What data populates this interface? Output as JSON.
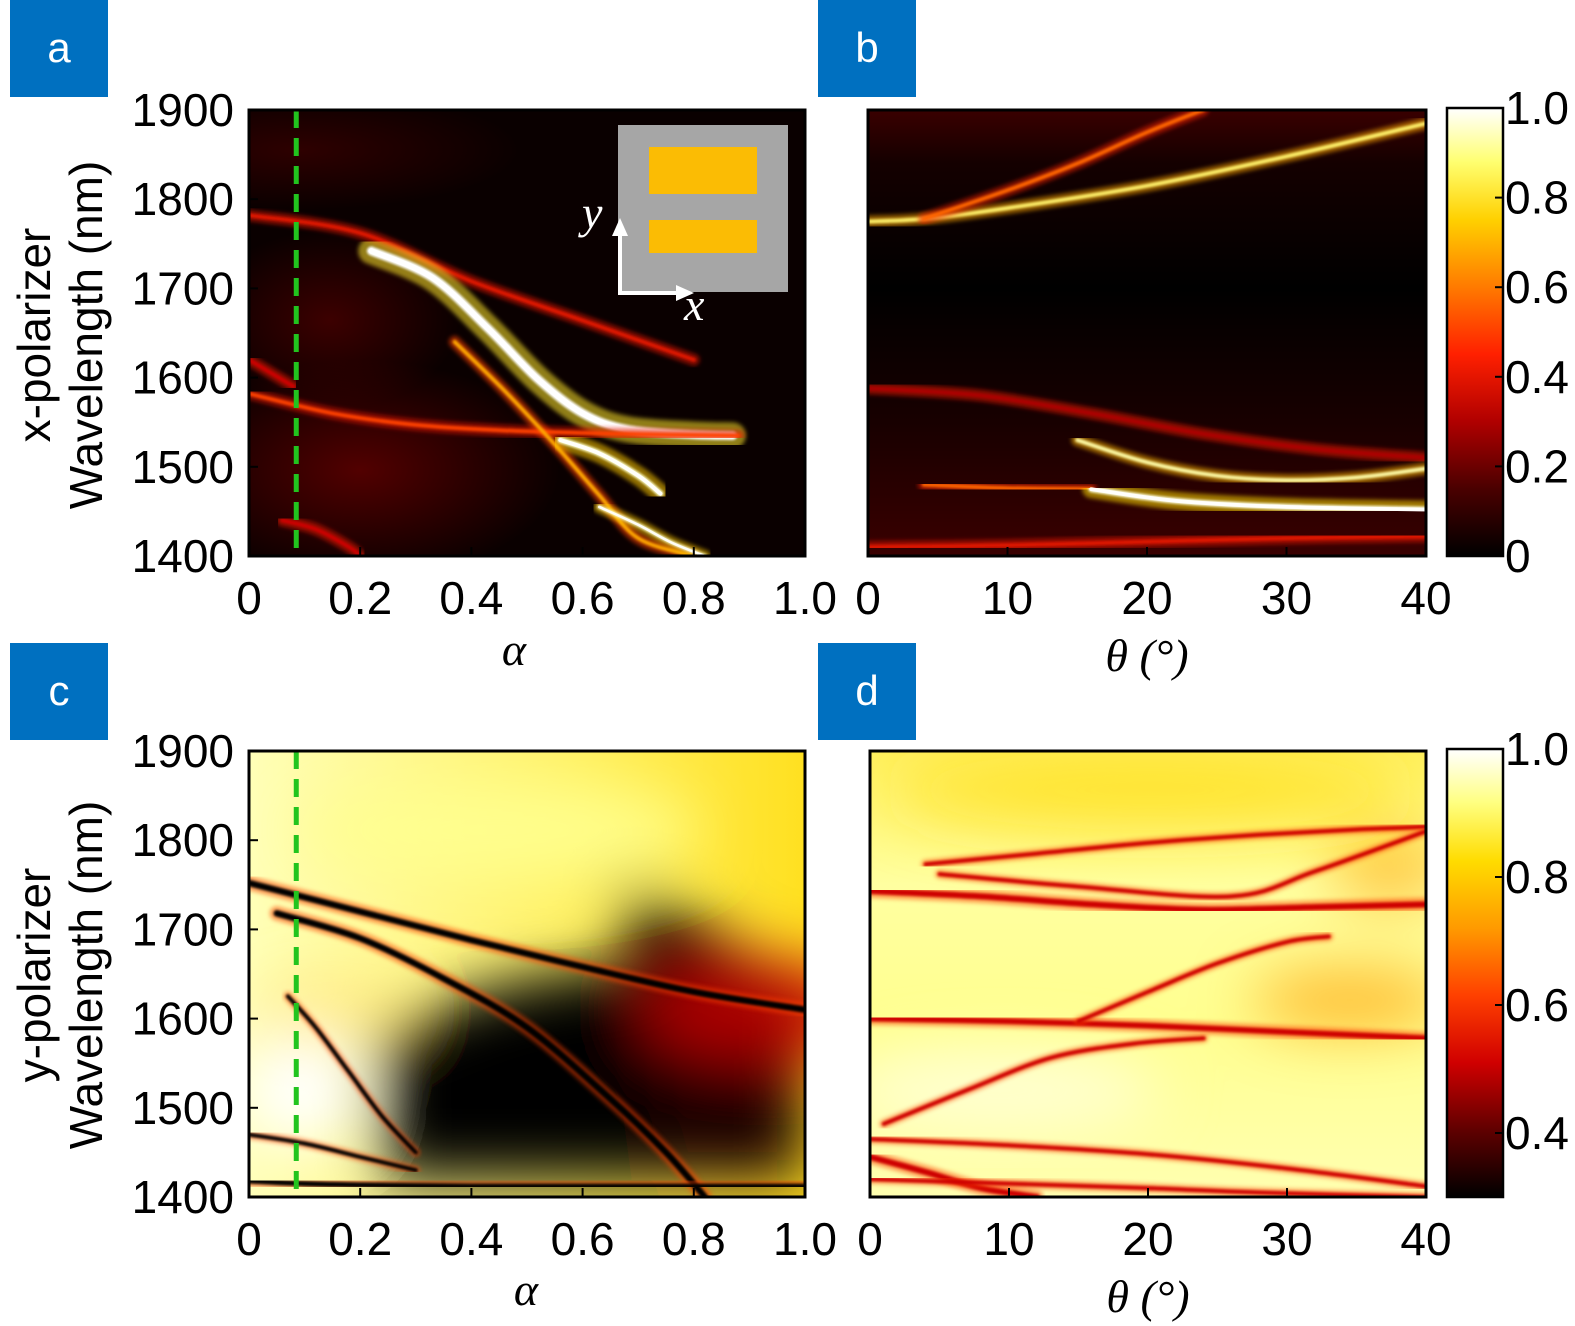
{
  "colors": {
    "badge": "#0070c0",
    "badge_text": "#ffffff",
    "dashed_line": "#22c41e",
    "inset_bg": "#a6a6a6",
    "inset_bar": "#fbbc04",
    "colormap": [
      "#000000",
      "#5c0000",
      "#c80000",
      "#ff3300",
      "#ff9900",
      "#ffdd00",
      "#ffffb0",
      "#ffffff"
    ]
  },
  "inset": {
    "x_label": "x",
    "y_label": "y"
  },
  "chart_data": [
    {
      "panel": "a",
      "type": "heatmap",
      "ylabel_line1": "x-polarizer",
      "ylabel_line2": "Wavelength (nm)",
      "xlabel": "α",
      "xlim": [
        0,
        1.0
      ],
      "ylim": [
        1400,
        1900
      ],
      "x_ticks": [
        "0",
        "0.2",
        "0.4",
        "0.6",
        "0.8",
        "1.0"
      ],
      "y_ticks": [
        "1900",
        "1800",
        "1700",
        "1600",
        "1500",
        "1400"
      ],
      "dashed_line_x": 0.085,
      "bands": [
        {
          "x": [
            0,
            0.2,
            0.4,
            0.6,
            0.8
          ],
          "y": [
            1782,
            1762,
            1708,
            1664,
            1620
          ],
          "intensity": 0.35
        },
        {
          "x": [
            0.22,
            0.33,
            0.43,
            0.52,
            0.6,
            0.68,
            0.8,
            0.87
          ],
          "y": [
            1742,
            1712,
            1655,
            1598,
            1560,
            1542,
            1536,
            1535
          ],
          "intensity": 1.0,
          "width": 2.2
        },
        {
          "x": [
            0,
            0.15,
            0.3,
            0.45,
            0.6,
            0.75,
            0.88
          ],
          "y": [
            1582,
            1560,
            1547,
            1541,
            1538,
            1536,
            1535
          ],
          "intensity": 0.45
        },
        {
          "x": [
            0.37,
            0.46,
            0.55,
            0.63,
            0.7,
            0.8
          ],
          "y": [
            1640,
            1585,
            1525,
            1468,
            1420,
            1400
          ],
          "intensity": 0.6
        },
        {
          "x": [
            0.56,
            0.63,
            0.7,
            0.74
          ],
          "y": [
            1530,
            1515,
            1490,
            1470
          ],
          "intensity": 0.9,
          "width": 1.6
        },
        {
          "x": [
            0.63,
            0.7,
            0.76,
            0.82
          ],
          "y": [
            1455,
            1435,
            1415,
            1400
          ],
          "intensity": 0.9
        },
        {
          "x": [
            0,
            0.08
          ],
          "y": [
            1620,
            1590
          ],
          "intensity": 0.3
        },
        {
          "x": [
            0.06,
            0.12,
            0.18,
            0.2
          ],
          "y": [
            1440,
            1430,
            1410,
            1400
          ],
          "intensity": 0.3
        }
      ]
    },
    {
      "panel": "b",
      "type": "heatmap",
      "xlabel": "θ (°)",
      "xlim": [
        0,
        40
      ],
      "ylim": [
        1400,
        1900
      ],
      "x_ticks": [
        "0",
        "10",
        "20",
        "30",
        "40"
      ],
      "colorbar": {
        "min": 0,
        "max": 1.0,
        "ticks": [
          "1.0",
          "0.8",
          "0.6",
          "0.4",
          "0.2",
          "0"
        ]
      },
      "bands": [
        {
          "x": [
            0,
            4,
            10,
            20,
            30,
            40
          ],
          "y": [
            1775,
            1778,
            1790,
            1815,
            1848,
            1885
          ],
          "intensity": 0.8
        },
        {
          "x": [
            4,
            10,
            15,
            20,
            24
          ],
          "y": [
            1778,
            1810,
            1840,
            1875,
            1900
          ],
          "intensity": 0.5
        },
        {
          "x": [
            0,
            8,
            16,
            24,
            32,
            40
          ],
          "y": [
            1588,
            1580,
            1560,
            1537,
            1520,
            1510
          ],
          "intensity": 0.25
        },
        {
          "x": [
            15,
            20,
            25,
            30,
            35,
            40
          ],
          "y": [
            1530,
            1505,
            1490,
            1485,
            1488,
            1498
          ],
          "intensity": 0.85
        },
        {
          "x": [
            4,
            10,
            16
          ],
          "y": [
            1480,
            1476,
            1475
          ],
          "intensity": 0.5
        },
        {
          "x": [
            16,
            22,
            30,
            40
          ],
          "y": [
            1475,
            1462,
            1455,
            1452
          ],
          "intensity": 0.95,
          "width": 1.5
        },
        {
          "x": [
            0,
            10,
            20,
            30,
            40
          ],
          "y": [
            1410,
            1412,
            1416,
            1420,
            1422
          ],
          "intensity": 0.35
        }
      ]
    },
    {
      "panel": "c",
      "type": "heatmap",
      "ylabel_line1": "y-polarizer",
      "ylabel_line2": "Wavelength (nm)",
      "xlabel": "α",
      "xlim": [
        0,
        1.0
      ],
      "ylim": [
        1400,
        1900
      ],
      "x_ticks": [
        "0",
        "0.2",
        "0.4",
        "0.6",
        "0.8",
        "1.0"
      ],
      "y_ticks": [
        "1900",
        "1800",
        "1700",
        "1600",
        "1500",
        "1400"
      ],
      "dashed_line_x": 0.085,
      "bands": [
        {
          "x": [
            0,
            0.2,
            0.4,
            0.6,
            0.8,
            1.0
          ],
          "y": [
            1752,
            1720,
            1688,
            1658,
            1630,
            1610
          ],
          "intensity": 0.0,
          "width": 1.6
        },
        {
          "x": [
            0.05,
            0.2,
            0.35,
            0.5,
            0.65,
            0.75,
            0.82
          ],
          "y": [
            1718,
            1690,
            1645,
            1590,
            1510,
            1450,
            1400
          ],
          "intensity": 0.0,
          "width": 1.6
        },
        {
          "x": [
            0.07,
            0.12,
            0.18,
            0.24,
            0.3
          ],
          "y": [
            1625,
            1590,
            1540,
            1490,
            1450
          ],
          "intensity": 0.0
        },
        {
          "x": [
            0,
            0.1,
            0.2,
            0.3
          ],
          "y": [
            1470,
            1460,
            1445,
            1430
          ],
          "intensity": 0.0
        },
        {
          "x": [
            0,
            0.1,
            0.25,
            0.4,
            0.6,
            0.82,
            1.0
          ],
          "y": [
            1418,
            1415,
            1413,
            1412,
            1412,
            1412,
            1412
          ],
          "intensity": 0.0,
          "width": 1.3
        }
      ]
    },
    {
      "panel": "d",
      "type": "heatmap",
      "xlabel": "θ (°)",
      "xlim": [
        0,
        40
      ],
      "ylim": [
        1400,
        1900
      ],
      "x_ticks": [
        "0",
        "10",
        "20",
        "30",
        "40"
      ],
      "colorbar": {
        "min": 0.3,
        "max": 1.0,
        "ticks": [
          "1.0",
          "0.8",
          "0.6",
          "0.4"
        ]
      },
      "bands": [
        {
          "x": [
            0,
            8,
            16,
            24,
            32,
            40
          ],
          "y": [
            1743,
            1737,
            1728,
            1722,
            1725,
            1728
          ],
          "intensity": 0.3,
          "width": 1.5
        },
        {
          "x": [
            0,
            10,
            20,
            30,
            40
          ],
          "y": [
            1600,
            1597,
            1592,
            1585,
            1578
          ],
          "intensity": 0.3,
          "width": 1.4
        },
        {
          "x": [
            4,
            12,
            20,
            28,
            35,
            40
          ],
          "y": [
            1773,
            1785,
            1797,
            1806,
            1812,
            1815
          ],
          "intensity": 0.3
        },
        {
          "x": [
            5,
            15,
            26,
            32,
            40
          ],
          "y": [
            1762,
            1748,
            1737,
            1765,
            1810
          ],
          "intensity": 0.3
        },
        {
          "x": [
            15,
            20,
            25,
            30,
            33
          ],
          "y": [
            1597,
            1630,
            1662,
            1686,
            1692
          ],
          "intensity": 0.3
        },
        {
          "x": [
            1,
            7,
            13,
            19,
            24
          ],
          "y": [
            1482,
            1520,
            1556,
            1572,
            1578
          ],
          "intensity": 0.3
        },
        {
          "x": [
            0,
            10,
            20,
            30,
            40
          ],
          "y": [
            1465,
            1458,
            1448,
            1432,
            1412
          ],
          "intensity": 0.3
        },
        {
          "x": [
            0,
            4,
            8,
            12
          ],
          "y": [
            1445,
            1428,
            1410,
            1400
          ],
          "intensity": 0.3,
          "width": 1.5
        },
        {
          "x": [
            0,
            10,
            20,
            28,
            40
          ],
          "y": [
            1420,
            1415,
            1410,
            1405,
            1400
          ],
          "intensity": 0.3
        }
      ]
    }
  ]
}
